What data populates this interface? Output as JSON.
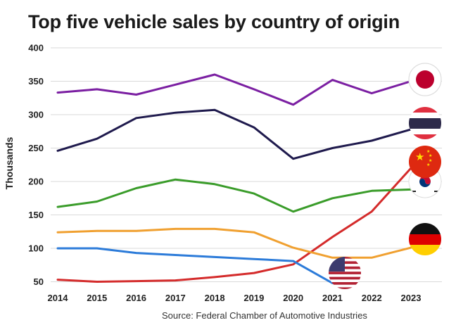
{
  "chart_data": {
    "type": "line",
    "title": "Top five vehicle sales by country of origin",
    "ylabel": "Thousands",
    "xlabel": "",
    "x": [
      2014,
      2015,
      2016,
      2017,
      2018,
      2019,
      2020,
      2021,
      2022,
      2023
    ],
    "ylim": [
      40,
      400
    ],
    "yticks": [
      50,
      100,
      150,
      200,
      250,
      300,
      350,
      400
    ],
    "grid": true,
    "legend": "none",
    "series": [
      {
        "id": "japan",
        "color": "#7b1fa2",
        "flag_icon": "japan-flag-icon",
        "values": [
          333,
          338,
          330,
          345,
          360,
          338,
          315,
          352,
          332,
          350
        ]
      },
      {
        "id": "thailand",
        "color": "#1f1a4d",
        "flag_icon": "thailand-flag-icon",
        "values": [
          246,
          264,
          295,
          303,
          307,
          281,
          234,
          250,
          261,
          278
        ]
      },
      {
        "id": "china",
        "color": "#d42b2b",
        "flag_icon": "china-flag-icon",
        "values": [
          53,
          50,
          51,
          52,
          57,
          63,
          76,
          117,
          155,
          220
        ]
      },
      {
        "id": "south-korea",
        "color": "#3a9c2a",
        "flag_icon": "south-korea-flag-icon",
        "values": [
          162,
          170,
          190,
          203,
          196,
          182,
          155,
          175,
          186,
          188
        ]
      },
      {
        "id": "germany",
        "color": "#f0a030",
        "flag_icon": "germany-flag-icon",
        "values": [
          124,
          126,
          126,
          129,
          129,
          124,
          101,
          86,
          86,
          101
        ]
      },
      {
        "id": "usa",
        "color": "#2c7bd9",
        "flag_icon": "usa-flag-icon",
        "values": [
          100,
          100,
          93,
          90,
          87,
          84,
          81,
          48,
          null,
          null
        ]
      }
    ]
  },
  "source": "Source: Federal Chamber of Automotive Industries"
}
